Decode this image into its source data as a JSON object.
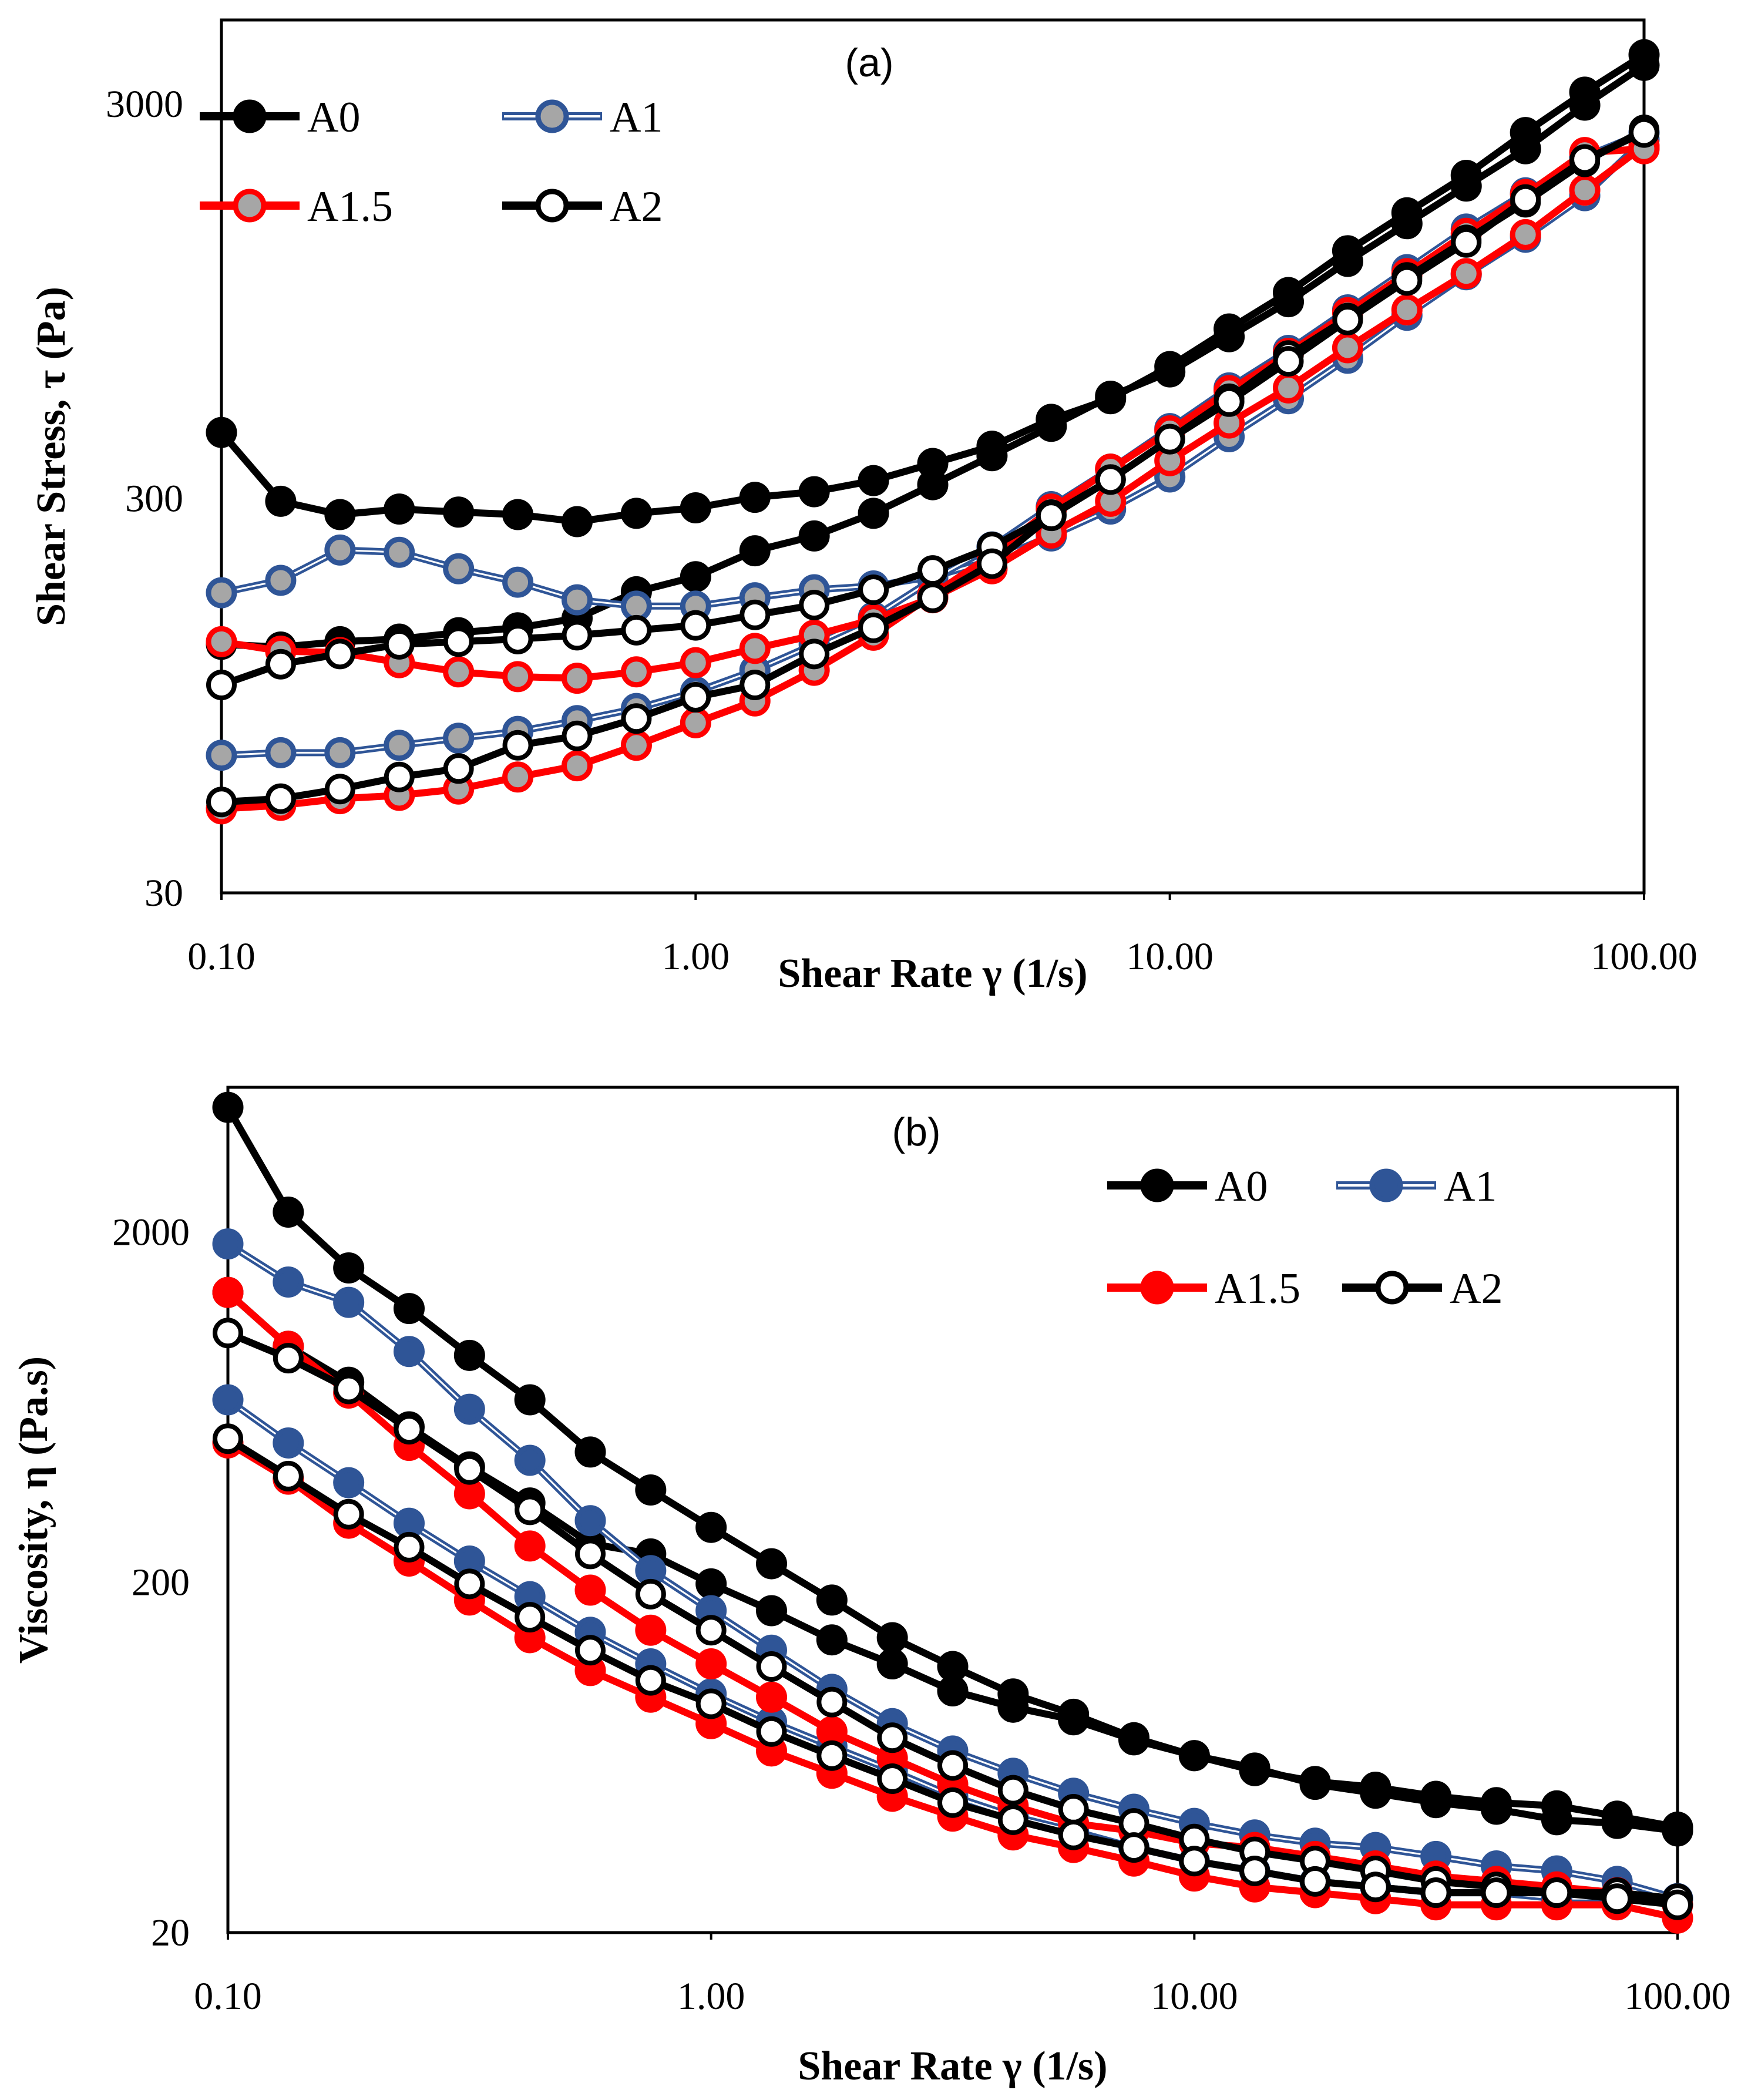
{
  "colors": {
    "A0": "#000000",
    "A1": "#2F5597",
    "A1.5": "#FF0000",
    "A2": "#000000",
    "marker_gray": "#A6A6A6"
  },
  "chart_data": [
    {
      "type": "line",
      "title": "(a)",
      "xlabel": "Shear Rate γ (1/s)",
      "ylabel": "Shear Stress, τ (Pa)",
      "xscale": "log",
      "yscale": "log",
      "xlim": [
        0.1,
        100
      ],
      "ylim": [
        30,
        4900
      ],
      "xticks": [
        "0.10",
        "1.00",
        "10.00",
        "100.00"
      ],
      "xtick_values": [
        0.1,
        1,
        10,
        100
      ],
      "yticks": [
        "30",
        "300",
        "3000"
      ],
      "ytick_values": [
        30,
        300,
        3000
      ],
      "legend": {
        "placement": "top-left",
        "entries": [
          "A0",
          "A1",
          "A1.5",
          "A2"
        ]
      },
      "x_rule": "x = 10^(-1 + k/8), k = 0..24",
      "series": [
        {
          "name": "A0",
          "sweep": "upper",
          "values": [
            441,
            295,
            273,
            282,
            277,
            273,
            262,
            275,
            284,
            302,
            312,
            333,
            368,
            407,
            476,
            537,
            648,
            807,
            998,
            1274,
            1590,
            1978,
            2540,
            3215,
            4000
          ]
        },
        {
          "name": "A0",
          "sweep": "lower",
          "values": [
            128,
            126,
            130,
            132,
            137,
            141,
            149,
            174,
            190,
            221,
            241,
            275,
            325,
            385,
            457,
            545,
            628,
            771,
            946,
            1197,
            1492,
            1858,
            2310,
            2980,
            3760
          ]
        },
        {
          "name": "A1",
          "sweep": "upper",
          "values": [
            173,
            186,
            222,
            219,
            199,
            184,
            166,
            160,
            160,
            168,
            176,
            180,
            190,
            209,
            241,
            282,
            340,
            430,
            537,
            680,
            874,
            1107,
            1378,
            1757,
            2440
          ]
        },
        {
          "name": "A1",
          "sweep": "lower",
          "values": [
            67,
            68,
            68,
            71,
            74,
            77,
            82,
            88,
            97,
            110,
            128,
            150,
            187,
            226,
            286,
            356,
            451,
            572,
            712,
            902,
            1141,
            1446,
            1786,
            2205,
            2540
          ]
        },
        {
          "name": "A1.5",
          "sweep": "upper",
          "values": [
            130,
            123,
            122,
            115,
            109,
            106,
            105,
            109,
            115,
            125,
            135,
            148,
            168,
            199,
            245,
            295,
            374,
            466,
            572,
            723,
            902,
            1115,
            1400,
            1815,
            2350
          ]
        },
        {
          "name": "A1.5",
          "sweep": "lower",
          "values": [
            49,
            50,
            52,
            53,
            55,
            59,
            63,
            71,
            81,
            92,
            110,
            135,
            171,
            216,
            282,
            356,
            445,
            563,
            700,
            888,
            1115,
            1410,
            1769,
            2260,
            2310
          ]
        },
        {
          "name": "A2",
          "sweep": "upper",
          "values": [
            101,
            114,
            121,
            128,
            130,
            132,
            135,
            139,
            143,
            152,
            161,
            176,
            197,
            226,
            273,
            335,
            424,
            537,
            691,
            860,
            1090,
            1357,
            1690,
            2140,
            2580
          ]
        },
        {
          "name": "A2",
          "sweep": "lower",
          "values": [
            51,
            52,
            55,
            59,
            62,
            71,
            75,
            83,
            94,
            101,
            121,
            141,
            168,
            205,
            271,
            335,
            424,
            528,
            668,
            850,
            1071,
            1337,
            1718,
            2170,
            2540
          ]
        }
      ]
    },
    {
      "type": "line",
      "title": "(b)",
      "xlabel": "Shear Rate γ (1/s)",
      "ylabel": "Viscosity, η (Pa.s)",
      "xscale": "log",
      "yscale": "log",
      "xlim": [
        0.1,
        100
      ],
      "ylim": [
        20,
        5180
      ],
      "xticks": [
        "0.10",
        "1.00",
        "10.00",
        "100.00"
      ],
      "xtick_values": [
        0.1,
        1,
        10,
        100
      ],
      "yticks": [
        "20",
        "200",
        "2000"
      ],
      "ytick_values": [
        20,
        200,
        2000
      ],
      "legend": {
        "placement": "top-right",
        "entries": [
          "A0",
          "A1",
          "A1.5",
          "A2"
        ]
      },
      "x_rule": "x = 10^(-1 + k/8), k = 0..24",
      "series": [
        {
          "name": "A0",
          "sweep": "upper",
          "values": [
            4540,
            2280,
            1580,
            1210,
            889,
            664,
            471,
            367,
            287,
            226,
            178,
            139,
            115,
            96,
            84,
            72,
            64,
            58,
            54,
            52,
            49,
            47,
            46,
            43,
            40
          ]
        },
        {
          "name": "A0",
          "sweep": "lower",
          "values": [
            1345,
            944,
            745,
            556,
            427,
            337,
            258,
            241,
            198,
            166,
            137,
            117,
            98,
            88,
            81,
            71,
            64,
            59,
            53,
            50,
            47,
            45,
            42,
            41,
            39
          ]
        },
        {
          "name": "A1",
          "sweep": "upper",
          "values": [
            1850,
            1440,
            1260,
            912,
            624,
            446,
            300,
            216,
            166,
            128,
            99,
            79,
            66,
            57,
            50,
            45,
            41,
            38,
            36,
            35,
            33,
            31,
            30,
            28,
            25
          ]
        },
        {
          "name": "A1",
          "sweep": "lower",
          "values": [
            664,
            500,
            385,
            295,
            230,
            182,
            144,
            117,
            96,
            80,
            68,
            58,
            49,
            43,
            39,
            35,
            32,
            30,
            28,
            27,
            26,
            26,
            25,
            25,
            25
          ]
        },
        {
          "name": "A1.5",
          "sweep": "upper",
          "values": [
            1345,
            944,
            694,
            492,
            358,
            254,
            190,
            146,
            117,
            94,
            75,
            63,
            53,
            46,
            41,
            39,
            36,
            35,
            33,
            31,
            29,
            28,
            27,
            26,
            24
          ]
        },
        {
          "name": "A1.5",
          "sweep": "lower",
          "values": [
            500,
            394,
            295,
            230,
            178,
            139,
            112,
            94,
            79,
            66,
            57,
            49,
            43,
            38,
            35,
            32,
            29,
            27,
            26,
            25,
            24,
            24,
            24,
            24,
            22
          ]
        },
        {
          "name": "A2",
          "sweep": "upper",
          "values": [
            1030,
            873,
            713,
            547,
            420,
            322,
            241,
            185,
            146,
            115,
            91,
            72,
            60,
            51,
            45,
            41,
            37,
            34,
            32,
            30,
            28,
            27,
            26,
            26,
            25
          ]
        },
        {
          "name": "A2",
          "sweep": "lower",
          "values": [
            514,
            402,
            313,
            252,
            198,
            159,
            128,
            105,
            90,
            75,
            64,
            55,
            47,
            42,
            38,
            35,
            32,
            30,
            28,
            27,
            26,
            26,
            26,
            25,
            24
          ]
        }
      ]
    }
  ]
}
